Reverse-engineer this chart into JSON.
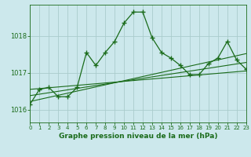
{
  "title": "Graphe pression niveau de la mer (hPa)",
  "bg_color": "#cce8ec",
  "grid_color": "#aacccc",
  "line_color": "#1a6b1a",
  "x_min": 0,
  "x_max": 23,
  "y_min": 1015.65,
  "y_max": 1018.85,
  "yticks": [
    1016,
    1017,
    1018
  ],
  "xticks": [
    0,
    1,
    2,
    3,
    4,
    5,
    6,
    7,
    8,
    9,
    10,
    11,
    12,
    13,
    14,
    15,
    16,
    17,
    18,
    19,
    20,
    21,
    22,
    23
  ],
  "main_line_x": [
    0,
    1,
    2,
    3,
    4,
    5,
    6,
    7,
    8,
    9,
    10,
    11,
    12,
    13,
    14,
    15,
    16,
    17,
    18,
    19,
    20,
    21,
    22,
    23
  ],
  "main_line_y": [
    1016.15,
    1016.55,
    1016.6,
    1016.35,
    1016.35,
    1016.6,
    1017.55,
    1017.2,
    1017.55,
    1017.85,
    1018.35,
    1018.65,
    1018.65,
    1017.95,
    1017.55,
    1017.4,
    1017.2,
    1016.95,
    1016.95,
    1017.25,
    1017.4,
    1017.85,
    1017.35,
    1017.1
  ],
  "trend1_x": [
    0,
    23
  ],
  "trend1_y": [
    1016.55,
    1017.05
  ],
  "trend2_x": [
    0,
    23
  ],
  "trend2_y": [
    1016.38,
    1017.28
  ],
  "trend3_x": [
    0,
    23
  ],
  "trend3_y": [
    1016.22,
    1017.52
  ]
}
